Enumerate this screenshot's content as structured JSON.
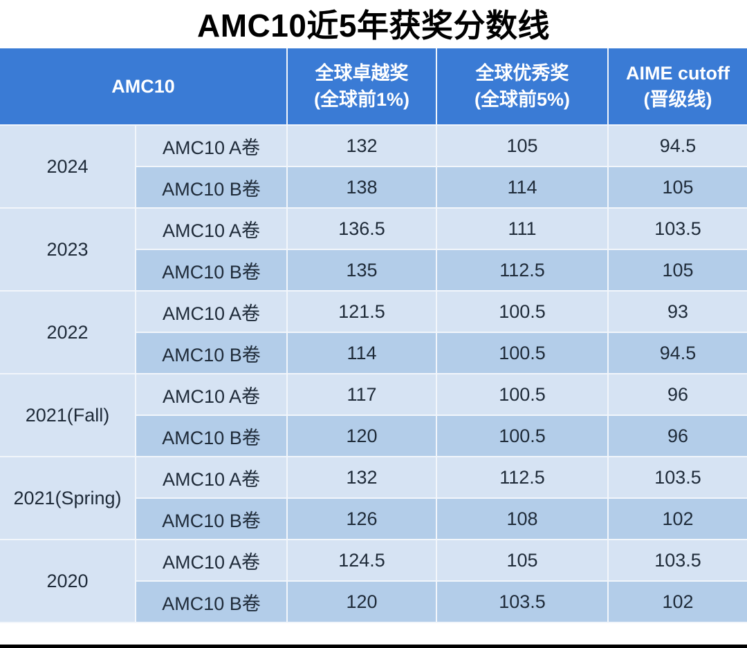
{
  "title": "AMC10近5年获奖分数线",
  "table": {
    "headers": {
      "col0": "AMC10",
      "col1_line1": "全球卓越奖",
      "col1_line2": "(全球前1%)",
      "col2_line1": "全球优秀奖",
      "col2_line2": "(全球前5%)",
      "col3_line1": "AIME cutoff",
      "col3_line2": "(晋级线)"
    },
    "groups": [
      {
        "year": "2024",
        "rows": [
          {
            "paper": "AMC10 A卷",
            "distinction": "132",
            "honor": "105",
            "aime": "94.5"
          },
          {
            "paper": "AMC10 B卷",
            "distinction": "138",
            "honor": "114",
            "aime": "105"
          }
        ]
      },
      {
        "year": "2023",
        "rows": [
          {
            "paper": "AMC10 A卷",
            "distinction": "136.5",
            "honor": "111",
            "aime": "103.5"
          },
          {
            "paper": "AMC10 B卷",
            "distinction": "135",
            "honor": "112.5",
            "aime": "105"
          }
        ]
      },
      {
        "year": "2022",
        "rows": [
          {
            "paper": "AMC10 A卷",
            "distinction": "121.5",
            "honor": "100.5",
            "aime": "93"
          },
          {
            "paper": "AMC10 B卷",
            "distinction": "114",
            "honor": "100.5",
            "aime": "94.5"
          }
        ]
      },
      {
        "year": "2021(Fall)",
        "rows": [
          {
            "paper": "AMC10 A卷",
            "distinction": "117",
            "honor": "100.5",
            "aime": "96"
          },
          {
            "paper": "AMC10 B卷",
            "distinction": "120",
            "honor": "100.5",
            "aime": "96"
          }
        ]
      },
      {
        "year": "2021(Spring)",
        "rows": [
          {
            "paper": "AMC10 A卷",
            "distinction": "132",
            "honor": "112.5",
            "aime": "103.5"
          },
          {
            "paper": "AMC10 B卷",
            "distinction": "126",
            "honor": "108",
            "aime": "102"
          }
        ]
      },
      {
        "year": "2020",
        "rows": [
          {
            "paper": "AMC10 A卷",
            "distinction": "124.5",
            "honor": "105",
            "aime": "103.5"
          },
          {
            "paper": "AMC10 B卷",
            "distinction": "120",
            "honor": "103.5",
            "aime": "102"
          }
        ]
      }
    ]
  },
  "colors": {
    "header_bg": "#3a7bd5",
    "row_light": "#d6e3f3",
    "row_dark": "#b3cde9",
    "text": "#1e2a38"
  }
}
